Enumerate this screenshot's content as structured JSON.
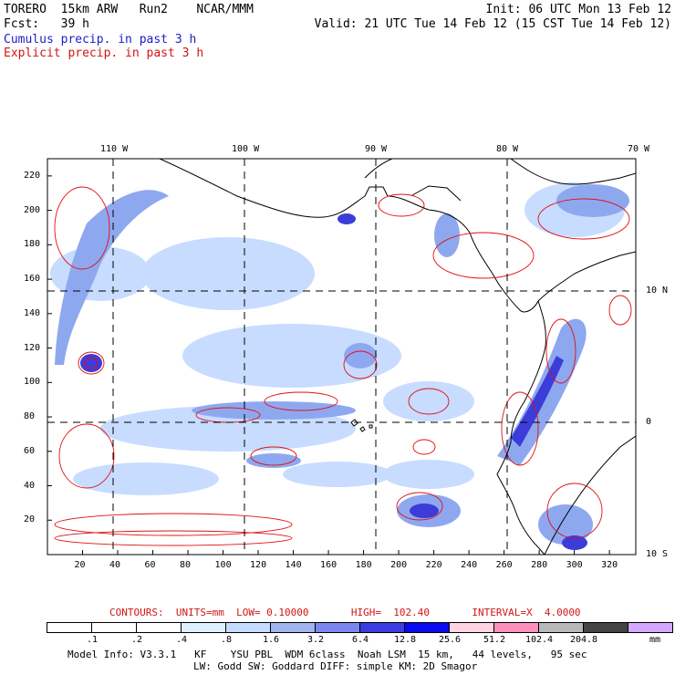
{
  "header": {
    "line1_left": "TORERO  15km ARW   Run2    NCAR/MMM",
    "line1_right": "Init: 06 UTC Mon 13 Feb 12",
    "line2_left": "Fcst:   39 h",
    "line2_right": "Valid: 21 UTC Tue 14 Feb 12 (15 CST Tue 14 Feb 12)",
    "legend_cumulus": "Cumulus precip. in past 3 h",
    "legend_explicit": "Explicit precip. in past 3 h"
  },
  "map": {
    "top_lon_labels": [
      "110 W",
      "100 W",
      "90 W",
      "80 W",
      "70 W"
    ],
    "left_y_ticks": [
      "220",
      "200",
      "180",
      "160",
      "140",
      "120",
      "100",
      "80",
      "60",
      "40",
      "20"
    ],
    "bottom_x_ticks": [
      "20",
      "40",
      "60",
      "80",
      "100",
      "120",
      "140",
      "160",
      "180",
      "200",
      "220",
      "240",
      "260",
      "280",
      "300",
      "320"
    ],
    "right_lat_labels": [
      "10 N",
      "0",
      "10 S"
    ],
    "colors": {
      "explicit_contour": "#e01010",
      "cumulus_light": "#c8dcff",
      "cumulus_mid": "#8ea8f0",
      "cumulus_dark": "#3c3cd8",
      "coastline": "#000000"
    }
  },
  "footer": {
    "contours": "CONTOURS:  UNITS=mm  LOW= 0.10000       HIGH=  102.40       INTERVAL=X  4.0000",
    "colorbar_labels": [
      ".1",
      ".2",
      ".4",
      ".8",
      "1.6",
      "3.2",
      "6.4",
      "12.8",
      "25.6",
      "51.2",
      "102.4",
      "204.8"
    ],
    "colorbar_colors": [
      "#ffffff",
      "#ffffff",
      "#ffffff",
      "#e0f0ff",
      "#c4dcff",
      "#a0b4f0",
      "#7c86f0",
      "#3c3ce0",
      "#0a0af0",
      "#ffd4e0",
      "#ff90bc",
      "#b8b8b8",
      "#444444",
      "#d4a8ff"
    ],
    "colorbar_unit": "mm",
    "model_info_1": "Model Info: V3.3.1   KF    YSU PBL  WDM 6class  Noah LSM  15 km,   44 levels,   95 sec",
    "model_info_2": "LW: Godd SW: Goddard DIFF: simple KM: 2D Smagor"
  }
}
